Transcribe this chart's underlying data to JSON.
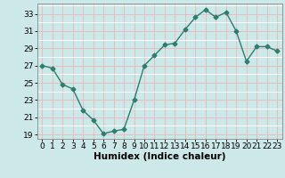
{
  "x": [
    0,
    1,
    2,
    3,
    4,
    5,
    6,
    7,
    8,
    9,
    10,
    11,
    12,
    13,
    14,
    15,
    16,
    17,
    18,
    19,
    20,
    21,
    22,
    23
  ],
  "y": [
    27,
    26.7,
    24.8,
    24.3,
    21.8,
    20.7,
    19.1,
    19.4,
    19.6,
    23.0,
    27.0,
    28.2,
    29.4,
    29.6,
    31.2,
    32.6,
    33.5,
    32.6,
    33.2,
    31.0,
    27.5,
    29.2,
    29.2,
    28.7
  ],
  "line_color": "#2e7d6e",
  "marker": "D",
  "marker_size": 2.5,
  "line_width": 1.0,
  "bg_color": "#cce8e8",
  "grid_major_color": "#e8b8b8",
  "grid_minor_color": "#ffffff",
  "xlabel": "Humidex (Indice chaleur)",
  "xlabel_weight": "bold",
  "xlabel_fontsize": 7.5,
  "yticks": [
    19,
    21,
    23,
    25,
    27,
    29,
    31,
    33
  ],
  "xticks": [
    0,
    1,
    2,
    3,
    4,
    5,
    6,
    7,
    8,
    9,
    10,
    11,
    12,
    13,
    14,
    15,
    16,
    17,
    18,
    19,
    20,
    21,
    22,
    23
  ],
  "ylim": [
    18.5,
    34.2
  ],
  "xlim": [
    -0.5,
    23.5
  ],
  "tick_fontsize": 6.5,
  "spine_color": "#888888"
}
